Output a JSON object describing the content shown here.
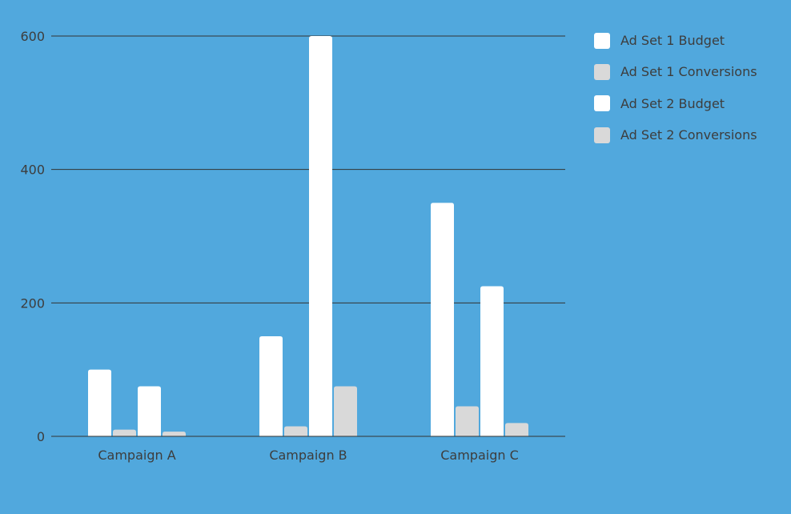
{
  "chart_data": {
    "type": "bar",
    "categories": [
      "Campaign A",
      "Campaign B",
      "Campaign C"
    ],
    "series": [
      {
        "name": "Ad Set 1 Budget",
        "values": [
          100,
          150,
          350
        ],
        "color": "#ffffff"
      },
      {
        "name": "Ad Set 1 Conversions",
        "values": [
          10,
          15,
          45
        ],
        "color": "#d9d9d9"
      },
      {
        "name": "Ad Set 2 Budget",
        "values": [
          75,
          600,
          225
        ],
        "color": "#ffffff"
      },
      {
        "name": "Ad Set 2 Conversions",
        "values": [
          7,
          75,
          20
        ],
        "color": "#d9d9d9"
      }
    ],
    "ylim": [
      0,
      600
    ],
    "yticks": [
      0,
      200,
      400,
      600
    ],
    "grid": true,
    "legend_position": "top-right",
    "background_color": "#51a8dd"
  }
}
